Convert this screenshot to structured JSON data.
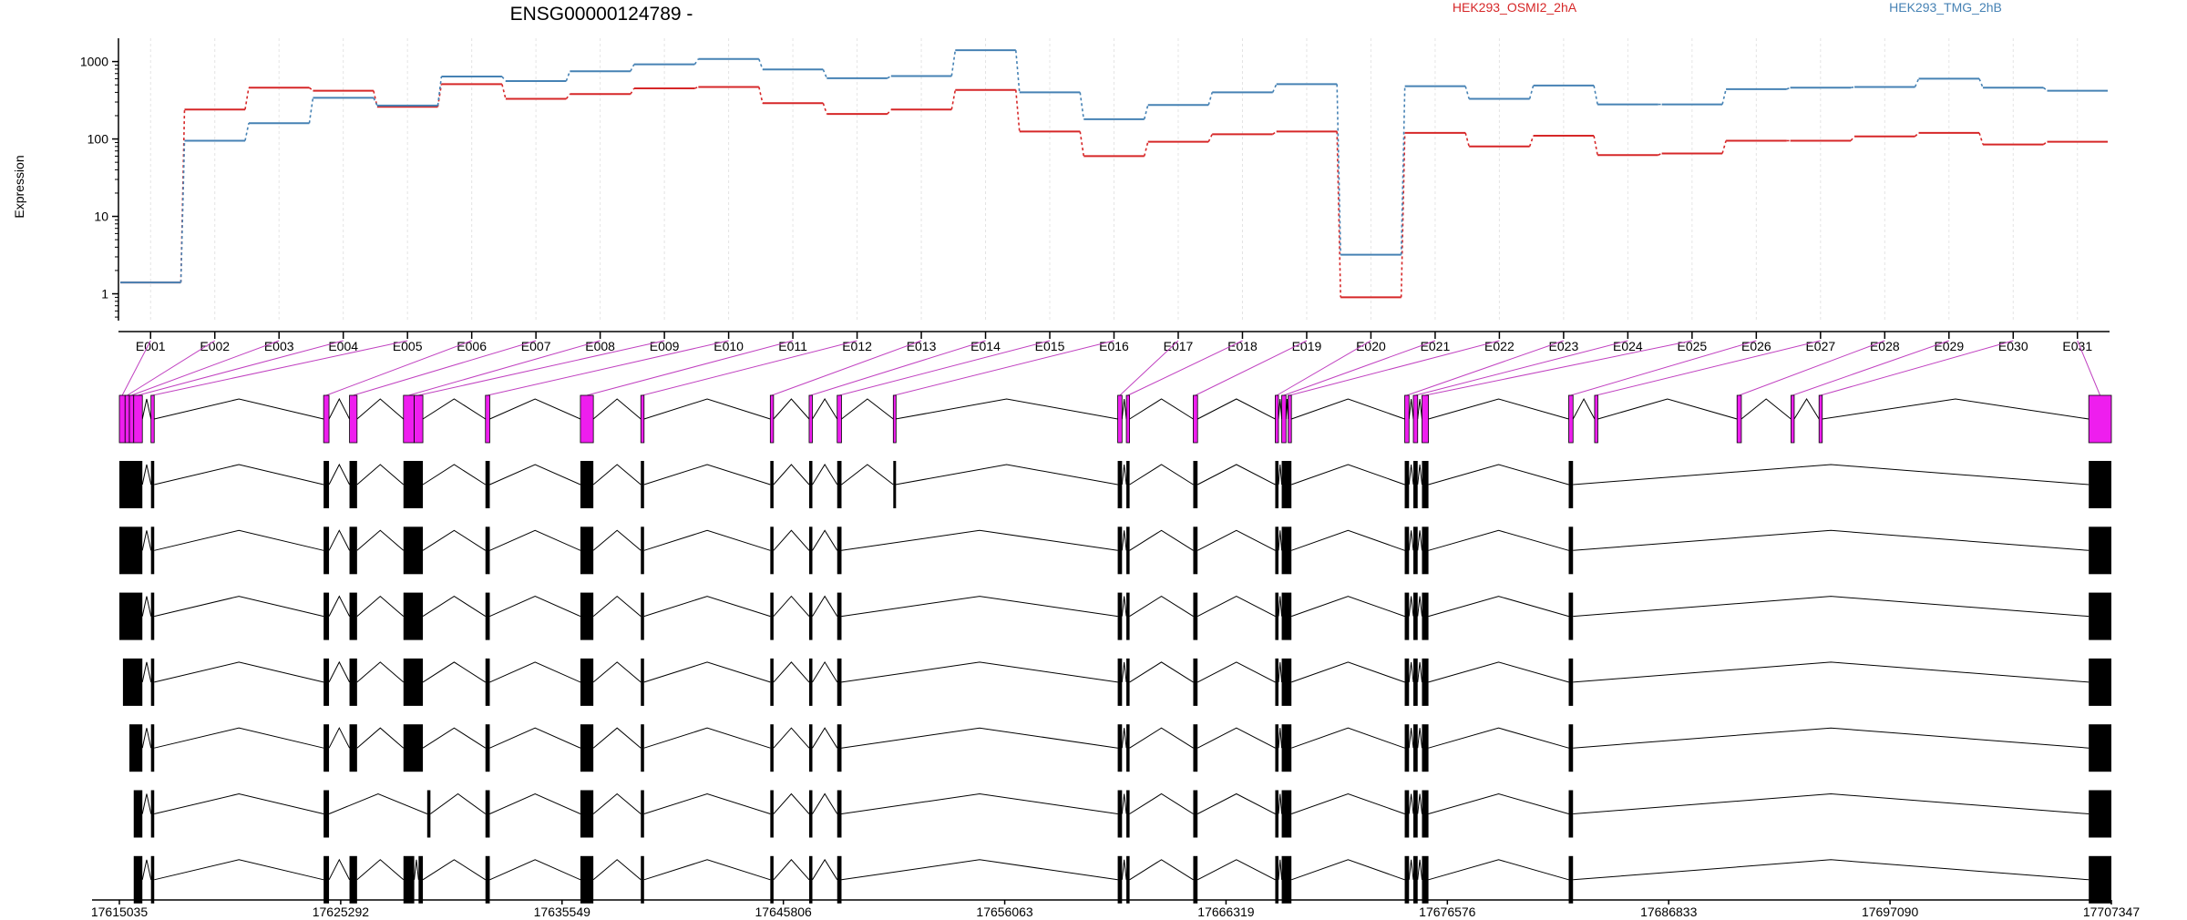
{
  "chart_data": {
    "type": "line",
    "title": "ENSG00000124789 -",
    "ylabel": "Expression",
    "y_scale": "log",
    "ylim": [
      0.45,
      2000
    ],
    "yticks": [
      1,
      10,
      100,
      1000
    ],
    "ytick_labels": [
      "1",
      "10",
      "100",
      "1000"
    ],
    "categories": [
      "E001",
      "E002",
      "E003",
      "E004",
      "E005",
      "E006",
      "E007",
      "E008",
      "E009",
      "E010",
      "E011",
      "E012",
      "E013",
      "E014",
      "E015",
      "E016",
      "E017",
      "E018",
      "E019",
      "E020",
      "E021",
      "E022",
      "E023",
      "E024",
      "E025",
      "E026",
      "E027",
      "E028",
      "E029",
      "E030",
      "E031"
    ],
    "series": [
      {
        "name": "HEK293_OSMI2_2hA",
        "color": "#d62728",
        "values": [
          1.4,
          240,
          460,
          420,
          260,
          510,
          330,
          380,
          450,
          470,
          290,
          210,
          240,
          430,
          125,
          60,
          92,
          115,
          125,
          0.9,
          120,
          80,
          110,
          62,
          65,
          95,
          95,
          108,
          120,
          85,
          92
        ]
      },
      {
        "name": "HEK293_TMG_2hB",
        "color": "#4682b4",
        "values": [
          1.4,
          95,
          160,
          340,
          270,
          640,
          560,
          750,
          920,
          1080,
          790,
          610,
          650,
          1400,
          400,
          180,
          275,
          400,
          510,
          3.2,
          480,
          330,
          490,
          280,
          280,
          440,
          460,
          470,
          600,
          460,
          420
        ]
      }
    ],
    "genomic_axis": {
      "start": 17615035,
      "end": 17707347,
      "ticks": [
        17615035,
        17625292,
        17635549,
        17645806,
        17656063,
        17666319,
        17676576,
        17686833,
        17697090,
        17707347
      ],
      "tick_labels": [
        "17615035",
        "17625292",
        "17635549",
        "17645806",
        "17656063",
        "17666319",
        "17676576",
        "17686833",
        "17697090",
        "17707347"
      ]
    },
    "exons": [
      [
        17615035,
        17615300
      ],
      [
        17615300,
        17615500
      ],
      [
        17615500,
        17615700
      ],
      [
        17615700,
        17616100
      ],
      [
        17616500,
        17616650
      ],
      [
        17624500,
        17624750
      ],
      [
        17625700,
        17626050
      ],
      [
        17628200,
        17628700
      ],
      [
        17628700,
        17629100
      ],
      [
        17632000,
        17632200
      ],
      [
        17636400,
        17637000
      ],
      [
        17639200,
        17639350
      ],
      [
        17645200,
        17645350
      ],
      [
        17647000,
        17647150
      ],
      [
        17648300,
        17648500
      ],
      [
        17650900,
        17651000
      ],
      [
        17661300,
        17661500
      ],
      [
        17661700,
        17661850
      ],
      [
        17664800,
        17665000
      ],
      [
        17668600,
        17668750
      ],
      [
        17668900,
        17669100
      ],
      [
        17669200,
        17669350
      ],
      [
        17674600,
        17674800
      ],
      [
        17675000,
        17675200
      ],
      [
        17675400,
        17675700
      ],
      [
        17682200,
        17682400
      ],
      [
        17683400,
        17683550
      ],
      [
        17690000,
        17690200
      ],
      [
        17692500,
        17692650
      ],
      [
        17693800,
        17693950
      ],
      [
        17706300,
        17707347
      ]
    ],
    "exon_colors": [
      "#ee1eee",
      "#ee1eee",
      "#ee1eee",
      "#ee1eee",
      "#ee1eee",
      "#ee1eee",
      "#ee1eee",
      "#ee1eee",
      "#ee1eee",
      "#ee1eee",
      "#ee1eee",
      "#ee1eee",
      "#ee1eee",
      "#ee1eee",
      "#ee1eee",
      "#ee1eee",
      "#ee1eee",
      "#ee1eee",
      "#ee1eee",
      "#ee1eee",
      "#ee1eee",
      "#ee1eee",
      "#ee1eee",
      "#ee1eee",
      "#ee1eee",
      "#ee1eee",
      "#ee1eee",
      "#ee1eee",
      "#ee1eee",
      "#ee1eee",
      "#ee1eee"
    ],
    "gene_model": [
      [
        17615035,
        17616100
      ],
      [
        17616500,
        17616650
      ],
      [
        17624500,
        17624750
      ],
      [
        17625700,
        17626050
      ],
      [
        17628200,
        17628700
      ],
      [
        17628700,
        17629100
      ],
      [
        17632000,
        17632200
      ],
      [
        17636400,
        17637000
      ],
      [
        17639200,
        17639350
      ],
      [
        17645200,
        17645350
      ],
      [
        17647000,
        17647150
      ],
      [
        17648300,
        17648500
      ],
      [
        17650900,
        17651000
      ],
      [
        17661300,
        17661500
      ],
      [
        17661700,
        17661850
      ],
      [
        17664800,
        17665000
      ],
      [
        17668600,
        17668750
      ],
      [
        17668900,
        17669350
      ],
      [
        17674600,
        17674800
      ],
      [
        17675000,
        17675200
      ],
      [
        17675400,
        17675700
      ],
      [
        17682200,
        17682400
      ],
      [
        17706300,
        17707347
      ]
    ],
    "transcripts": [
      [
        [
          17615035,
          17616100
        ],
        [
          17616500,
          17616650
        ],
        [
          17624500,
          17624750
        ],
        [
          17625700,
          17626050
        ],
        [
          17628200,
          17629100
        ],
        [
          17632000,
          17632200
        ],
        [
          17636400,
          17637000
        ],
        [
          17639200,
          17639350
        ],
        [
          17645200,
          17645350
        ],
        [
          17647000,
          17647150
        ],
        [
          17648300,
          17648500
        ],
        [
          17650900,
          17651000
        ],
        [
          17661300,
          17661500
        ],
        [
          17661700,
          17661850
        ],
        [
          17664800,
          17665000
        ],
        [
          17668600,
          17668750
        ],
        [
          17668900,
          17669350
        ],
        [
          17674600,
          17674800
        ],
        [
          17675000,
          17675200
        ],
        [
          17675400,
          17675700
        ],
        [
          17682200,
          17682400
        ],
        [
          17706300,
          17707347
        ]
      ],
      [
        [
          17615035,
          17616100
        ],
        [
          17616500,
          17616650
        ],
        [
          17624500,
          17624750
        ],
        [
          17625700,
          17626050
        ],
        [
          17628200,
          17629100
        ],
        [
          17632000,
          17632200
        ],
        [
          17636400,
          17637000
        ],
        [
          17639200,
          17639350
        ],
        [
          17645200,
          17645350
        ],
        [
          17647000,
          17647150
        ],
        [
          17648300,
          17648500
        ],
        [
          17661300,
          17661500
        ],
        [
          17661700,
          17661850
        ],
        [
          17664800,
          17665000
        ],
        [
          17668600,
          17668750
        ],
        [
          17668900,
          17669350
        ],
        [
          17674600,
          17674800
        ],
        [
          17675000,
          17675200
        ],
        [
          17675400,
          17675700
        ],
        [
          17682200,
          17682400
        ],
        [
          17706300,
          17707347
        ]
      ],
      [
        [
          17615035,
          17616100
        ],
        [
          17616500,
          17616650
        ],
        [
          17624500,
          17624750
        ],
        [
          17625700,
          17626050
        ],
        [
          17628200,
          17629100
        ],
        [
          17632000,
          17632200
        ],
        [
          17636400,
          17637000
        ],
        [
          17639200,
          17639350
        ],
        [
          17645200,
          17645350
        ],
        [
          17647000,
          17647150
        ],
        [
          17648300,
          17648500
        ],
        [
          17661300,
          17661500
        ],
        [
          17661700,
          17661850
        ],
        [
          17664800,
          17665000
        ],
        [
          17668600,
          17668750
        ],
        [
          17668900,
          17669350
        ],
        [
          17674600,
          17674800
        ],
        [
          17675000,
          17675200
        ],
        [
          17675400,
          17675700
        ],
        [
          17682200,
          17682400
        ],
        [
          17706300,
          17707347
        ]
      ],
      [
        [
          17615200,
          17616100
        ],
        [
          17616500,
          17616650
        ],
        [
          17624500,
          17624750
        ],
        [
          17625700,
          17626050
        ],
        [
          17628200,
          17629100
        ],
        [
          17632000,
          17632200
        ],
        [
          17636400,
          17637000
        ],
        [
          17639200,
          17639350
        ],
        [
          17645200,
          17645350
        ],
        [
          17647000,
          17647150
        ],
        [
          17648300,
          17648500
        ],
        [
          17661300,
          17661500
        ],
        [
          17661700,
          17661850
        ],
        [
          17664800,
          17665000
        ],
        [
          17668600,
          17668750
        ],
        [
          17668900,
          17669350
        ],
        [
          17674600,
          17674800
        ],
        [
          17675000,
          17675200
        ],
        [
          17675400,
          17675700
        ],
        [
          17682200,
          17682400
        ],
        [
          17706300,
          17707347
        ]
      ],
      [
        [
          17615500,
          17616100
        ],
        [
          17616500,
          17616650
        ],
        [
          17624500,
          17624750
        ],
        [
          17625700,
          17626050
        ],
        [
          17628200,
          17629100
        ],
        [
          17632000,
          17632200
        ],
        [
          17636400,
          17637000
        ],
        [
          17639200,
          17639350
        ],
        [
          17645200,
          17645350
        ],
        [
          17647000,
          17647150
        ],
        [
          17648300,
          17648500
        ],
        [
          17661300,
          17661500
        ],
        [
          17661700,
          17661850
        ],
        [
          17664800,
          17665000
        ],
        [
          17668600,
          17668750
        ],
        [
          17668900,
          17669350
        ],
        [
          17674600,
          17674800
        ],
        [
          17675000,
          17675200
        ],
        [
          17675400,
          17675700
        ],
        [
          17682200,
          17682400
        ],
        [
          17706300,
          17707347
        ]
      ],
      [
        [
          17615700,
          17616100
        ],
        [
          17616500,
          17616650
        ],
        [
          17624500,
          17624750
        ],
        [
          17629300,
          17629450
        ],
        [
          17632000,
          17632200
        ],
        [
          17636400,
          17637000
        ],
        [
          17639200,
          17639350
        ],
        [
          17645200,
          17645350
        ],
        [
          17647000,
          17647150
        ],
        [
          17648300,
          17648500
        ],
        [
          17661300,
          17661500
        ],
        [
          17661700,
          17661850
        ],
        [
          17664800,
          17665000
        ],
        [
          17668600,
          17668750
        ],
        [
          17668900,
          17669350
        ],
        [
          17674600,
          17674800
        ],
        [
          17675000,
          17675200
        ],
        [
          17675400,
          17675700
        ],
        [
          17682200,
          17682400
        ],
        [
          17706300,
          17707347
        ]
      ],
      [
        [
          17615700,
          17616100
        ],
        [
          17616500,
          17616650
        ],
        [
          17624500,
          17624750
        ],
        [
          17625700,
          17626050
        ],
        [
          17628200,
          17628700
        ],
        [
          17628900,
          17629100
        ],
        [
          17632000,
          17632200
        ],
        [
          17636400,
          17637000
        ],
        [
          17639200,
          17639350
        ],
        [
          17645200,
          17645350
        ],
        [
          17647000,
          17647150
        ],
        [
          17648300,
          17648500
        ],
        [
          17661300,
          17661500
        ],
        [
          17661700,
          17661850
        ],
        [
          17664800,
          17665000
        ],
        [
          17668600,
          17668750
        ],
        [
          17668900,
          17669350
        ],
        [
          17674600,
          17674800
        ],
        [
          17675000,
          17675200
        ],
        [
          17675400,
          17675700
        ],
        [
          17682200,
          17682400
        ],
        [
          17706300,
          17707347
        ]
      ]
    ]
  }
}
